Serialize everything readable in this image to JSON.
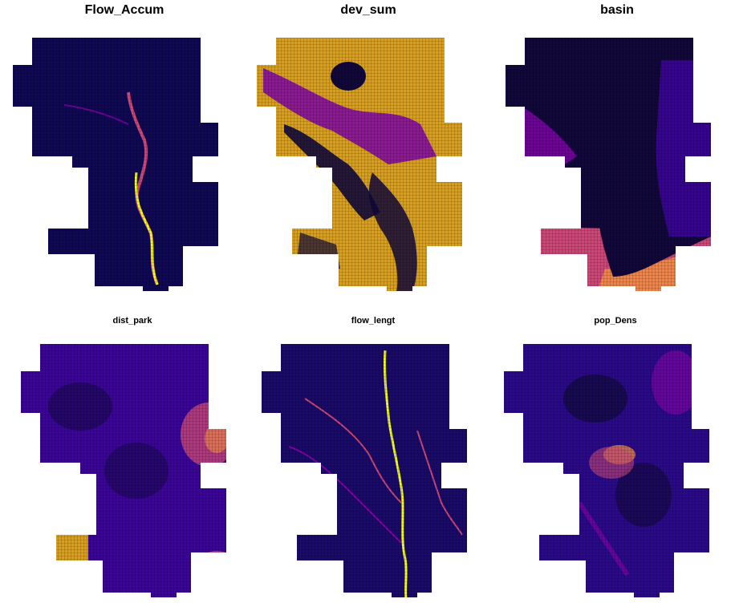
{
  "panels": [
    {
      "id": "flow-accum",
      "title": "Flow_Accum"
    },
    {
      "id": "dev-sum",
      "title": "dev_sum"
    },
    {
      "id": "basin",
      "title": "basin"
    },
    {
      "id": "dist-park",
      "title": "dist_park"
    },
    {
      "id": "flow-lengt",
      "title": "flow_lengt"
    },
    {
      "id": "pop-dens",
      "title": "pop_Dens"
    }
  ],
  "colors": {
    "background": "#ffffff",
    "low": "#0d0887",
    "dark": "#10083a",
    "mid": "#7e03a8",
    "high": "#cc4778",
    "peak": "#f0f921",
    "orange": "#f89540",
    "grid": "#000000"
  }
}
